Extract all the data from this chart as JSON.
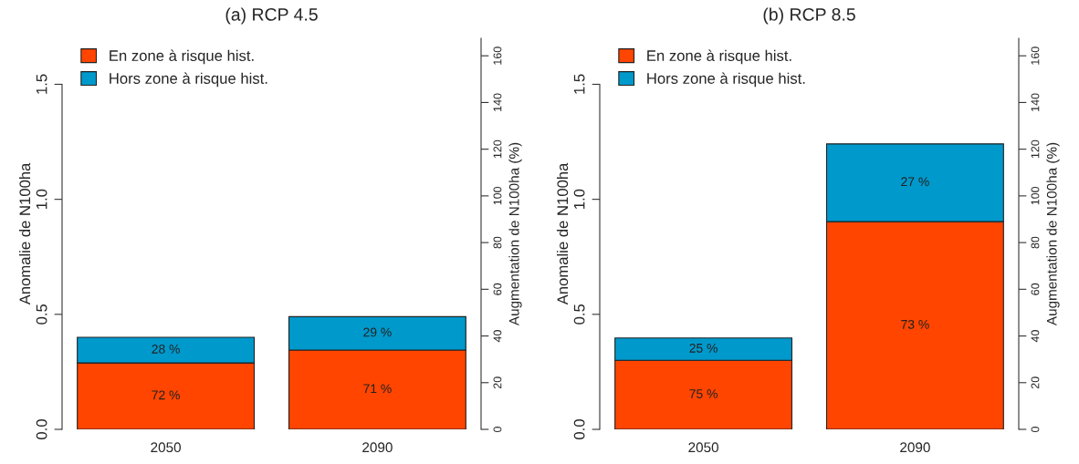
{
  "chart_data": [
    {
      "type": "bar",
      "title": "(a) RCP 4.5",
      "ylabel": "Anomalie de N100ha",
      "y2label": "Augmentation de N100ha (%)",
      "categories": [
        "2050",
        "2090"
      ],
      "stacked": true,
      "legend": "top left",
      "grid": false,
      "series": [
        {
          "name": "En zone à risque hist.",
          "color": "#ff4500",
          "values": [
            0.289,
            0.345
          ]
        },
        {
          "name": "Hors zone à risque hist.",
          "color": "#0099cc",
          "values": [
            0.111,
            0.145
          ]
        }
      ],
      "annotations": [
        "72 %",
        "71 %",
        "28 %",
        "29 %"
      ],
      "ylim": [
        0,
        1.7
      ],
      "yticks": [
        {
          "value": 0,
          "label": "0.0"
        },
        {
          "value": 0.5,
          "label": "0.5"
        },
        {
          "value": 1,
          "label": "1.0"
        },
        {
          "value": 1.5,
          "label": "1.5"
        }
      ],
      "y2lim": [
        0,
        167.5
      ],
      "y2ticks": [
        0,
        20,
        40,
        60,
        80,
        100,
        120,
        140,
        160
      ]
    },
    {
      "type": "bar",
      "title": "(b) RCP 8.5",
      "ylabel": "Anomalie de N100ha",
      "y2label": "Augmentation de N100ha (%)",
      "categories": [
        "2050",
        "2090"
      ],
      "stacked": true,
      "legend": "top left",
      "grid": false,
      "series": [
        {
          "name": "En zone à risque hist.",
          "color": "#ff4500",
          "values": [
            0.3,
            0.903
          ]
        },
        {
          "name": "Hors zone à risque hist.",
          "color": "#0099cc",
          "values": [
            0.097,
            0.338
          ]
        }
      ],
      "annotations": [
        "75 %",
        "73 %",
        "25 %",
        "27 %"
      ],
      "ylim": [
        0,
        1.7
      ],
      "yticks": [
        {
          "value": 0,
          "label": "0.0"
        },
        {
          "value": 0.5,
          "label": "0.5"
        },
        {
          "value": 1,
          "label": "1.0"
        },
        {
          "value": 1.5,
          "label": "1.5"
        }
      ],
      "y2lim": [
        0,
        167.5
      ],
      "y2ticks": [
        0,
        20,
        40,
        60,
        80,
        100,
        120,
        140,
        160
      ]
    }
  ]
}
